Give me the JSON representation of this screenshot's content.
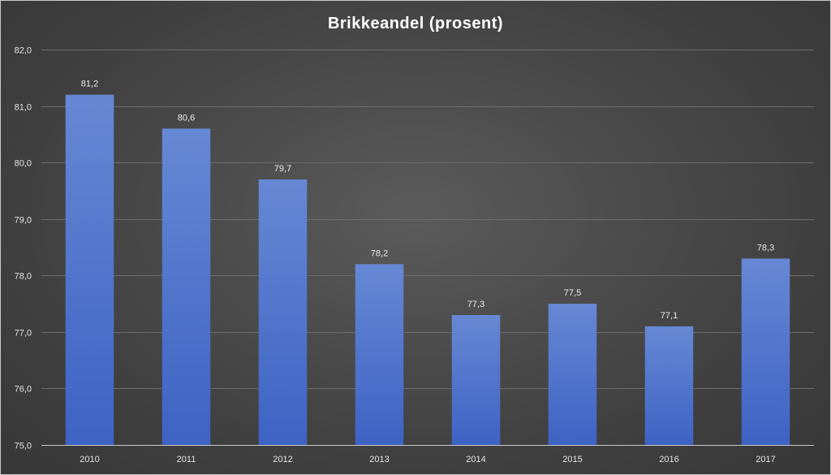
{
  "chart_data": {
    "type": "bar",
    "title": "Brikkeandel (prosent)",
    "categories": [
      "2010",
      "2011",
      "2012",
      "2013",
      "2014",
      "2015",
      "2016",
      "2017"
    ],
    "values": [
      81.2,
      80.6,
      79.7,
      78.2,
      77.3,
      77.5,
      77.1,
      78.3
    ],
    "value_labels": [
      "81,2",
      "80,6",
      "79,7",
      "78,2",
      "77,3",
      "77,5",
      "77,1",
      "78,3"
    ],
    "y_ticks": [
      75.0,
      76.0,
      77.0,
      78.0,
      79.0,
      80.0,
      81.0,
      82.0
    ],
    "y_tick_labels": [
      "75,0",
      "76,0",
      "77,0",
      "78,0",
      "79,0",
      "80,0",
      "81,0",
      "82,0"
    ],
    "ylim": [
      75.0,
      82.0
    ],
    "xlabel": "",
    "ylabel": "",
    "grid": true,
    "legend": "none",
    "colors": {
      "bar_top": "#6688d4",
      "bar_bottom": "#3d63c4",
      "grid": "#6d6d6d",
      "axis": "#c8c8c8",
      "text": "#e6e6e6",
      "title": "#ffffff",
      "background": "#4a4a4a"
    }
  }
}
